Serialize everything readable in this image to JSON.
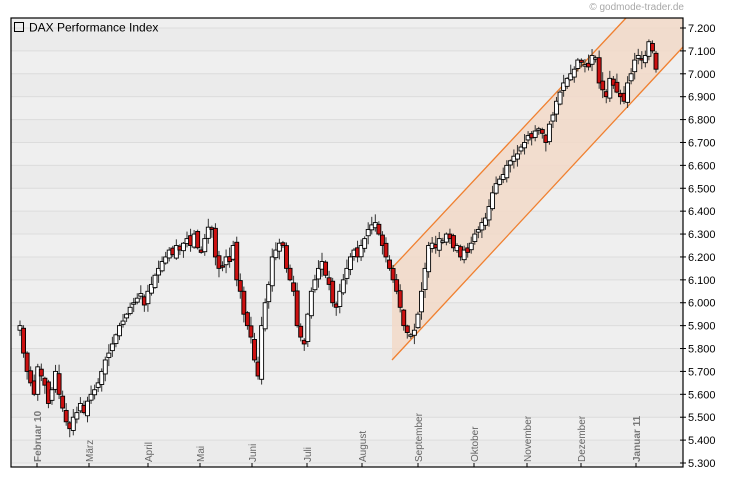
{
  "header": {
    "credit": "© godmode-trader.de"
  },
  "legend": {
    "label": "DAX Performance Index"
  },
  "chart_data": {
    "type": "candlestick",
    "title": "DAX Performance Index",
    "source": "© godmode-trader.de",
    "xlabel": "",
    "ylabel": "",
    "ylim": [
      5300,
      7250
    ],
    "y_axis_position": "right",
    "y_ticks": [
      5300,
      5400,
      5500,
      5600,
      5700,
      5800,
      5900,
      6000,
      6100,
      6200,
      6300,
      6400,
      6500,
      6600,
      6700,
      6800,
      6900,
      7000,
      7100,
      7200
    ],
    "y_tick_labels": [
      "5.300",
      "5.400",
      "5.500",
      "5.600",
      "5.700",
      "5.800",
      "5.900",
      "6.000",
      "6.100",
      "6.200",
      "6.300",
      "6.400",
      "6.500",
      "6.600",
      "6.700",
      "6.800",
      "6.900",
      "7.000",
      "7.100",
      "7.200"
    ],
    "x_tick_labels": [
      {
        "label": "Februar 10",
        "bold": true
      },
      {
        "label": "März",
        "bold": false
      },
      {
        "label": "April",
        "bold": false
      },
      {
        "label": "Mai",
        "bold": false
      },
      {
        "label": "Juni",
        "bold": false
      },
      {
        "label": "Juli",
        "bold": false
      },
      {
        "label": "August",
        "bold": false
      },
      {
        "label": "September",
        "bold": false
      },
      {
        "label": "Oktober",
        "bold": false
      },
      {
        "label": "November",
        "bold": false
      },
      {
        "label": "Dezember",
        "bold": false
      },
      {
        "label": "Januar 11",
        "bold": true
      }
    ],
    "grid": true,
    "legend_position": "top-left",
    "colors": {
      "up_candle": "#ffffff",
      "down_candle": "#cc1111",
      "candle_outline": "#000000",
      "channel_line": "#f08030",
      "channel_fill": "#f2d9c8",
      "plot_bg": "#efefef",
      "grid": "#dcdcdc"
    },
    "trend_channel": {
      "start_approx_date": "Aug 2010 end",
      "end_approx_date": "Jan 2011",
      "upper_line": [
        [
          6150,
          "start"
        ],
        [
          7250,
          "end"
        ]
      ],
      "lower_line": [
        [
          5750,
          "start"
        ],
        [
          7120,
          "end"
        ]
      ]
    },
    "close_series_approx": [
      5900,
      5780,
      5700,
      5650,
      5600,
      5720,
      5680,
      5640,
      5560,
      5620,
      5700,
      5600,
      5540,
      5480,
      5450,
      5500,
      5520,
      5560,
      5520,
      5570,
      5600,
      5620,
      5650,
      5700,
      5750,
      5780,
      5820,
      5860,
      5900,
      5920,
      5950,
      5980,
      6000,
      6020,
      6040,
      5990,
      6050,
      6080,
      6120,
      6150,
      6180,
      6200,
      6230,
      6210,
      6250,
      6230,
      6260,
      6280,
      6250,
      6300,
      6240,
      6220,
      6280,
      6330,
      6320,
      6200,
      6150,
      6160,
      6200,
      6180,
      6250,
      6100,
      6050,
      5950,
      5900,
      5850,
      5750,
      5680,
      5900,
      6000,
      6080,
      6200,
      6230,
      6260,
      6250,
      6150,
      6100,
      6050,
      5900,
      5850,
      5820,
      5950,
      6050,
      6100,
      6150,
      6180,
      6120,
      6080,
      6000,
      5980,
      6050,
      6100,
      6150,
      6200,
      6230,
      6200,
      6250,
      6280,
      6320,
      6340,
      6350,
      6300,
      6250,
      6200,
      6150,
      6100,
      6050,
      5980,
      5900,
      5870,
      5860,
      5880,
      5950,
      6050,
      6150,
      6250,
      6260,
      6240,
      6280,
      6270,
      6300,
      6280,
      6240,
      6250,
      6200,
      6230,
      6220,
      6260,
      6300,
      6320,
      6350,
      6370,
      6420,
      6480,
      6520,
      6540,
      6560,
      6600,
      6620,
      6640,
      6650,
      6680,
      6700,
      6730,
      6720,
      6750,
      6760,
      6740,
      6700,
      6780,
      6820,
      6880,
      6920,
      6960,
      6980,
      7000,
      7020,
      7060,
      7050,
      7040,
      7030,
      7080,
      7070,
      6960,
      6930,
      6900,
      6980,
      6950,
      6920,
      6900,
      6880,
      6960,
      7000,
      7060,
      7080,
      7060,
      7080,
      7140,
      7100,
      7020
    ]
  }
}
